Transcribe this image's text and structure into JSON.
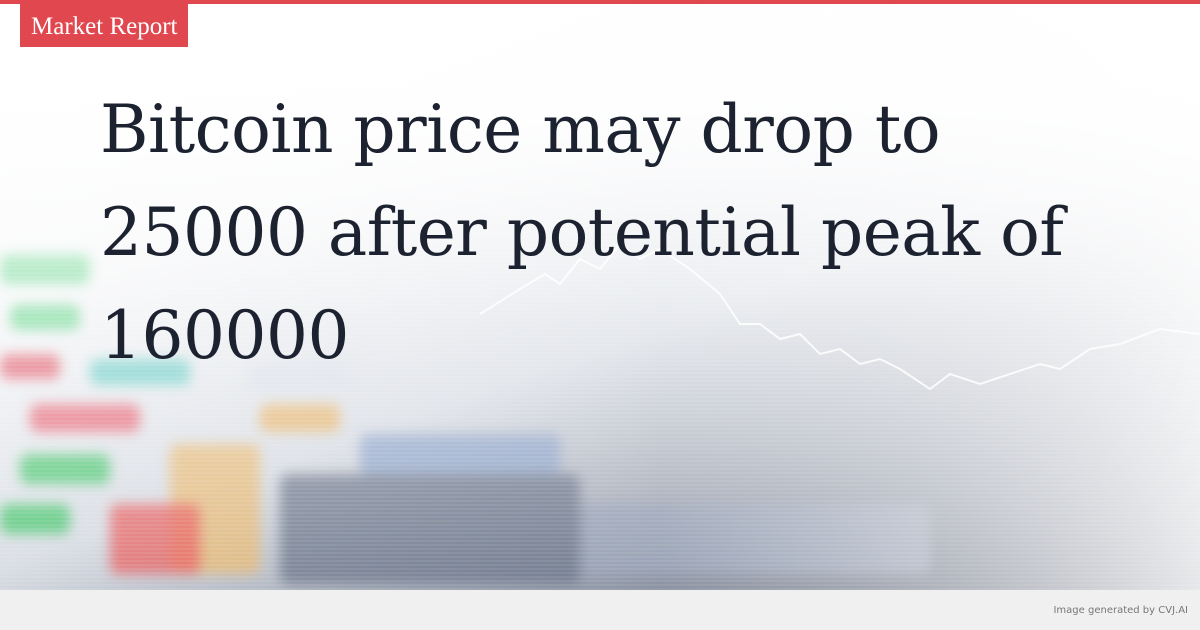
{
  "badge": {
    "label": "Market Report"
  },
  "headline": "Bitcoin price may drop to 25000 after potential peak of 160000",
  "footer": {
    "credit": "Image generated by CVJ.AI"
  },
  "colors": {
    "accent": "#e0474f",
    "title": "#1c2230"
  },
  "background_image": "blurred-stock-market-ticker-screen"
}
